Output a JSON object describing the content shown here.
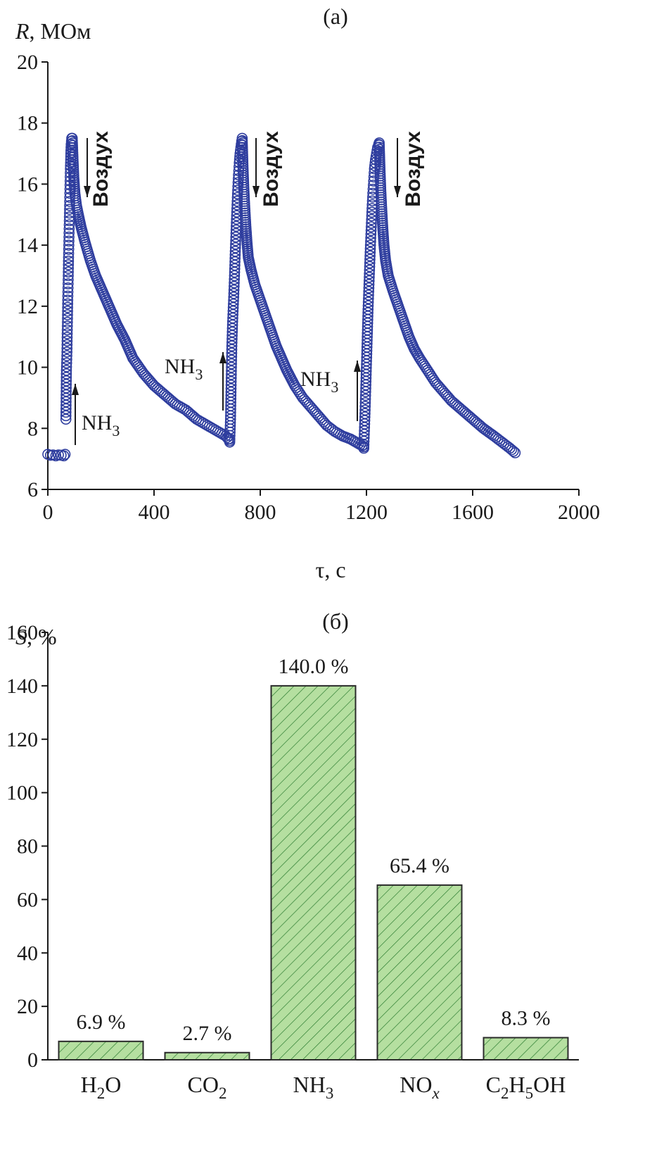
{
  "chart_data": [
    {
      "type": "scatter",
      "panel_label": "(a)",
      "ylabel_symbol": "R",
      "ylabel_unit": ", МОм",
      "xlabel": "τ, с",
      "xlim": [
        0,
        2000
      ],
      "ylim": [
        6,
        20
      ],
      "xticks": [
        0,
        400,
        800,
        1200,
        1600,
        2000
      ],
      "yticks": [
        6,
        8,
        10,
        12,
        14,
        16,
        18,
        20
      ],
      "marker_color": "#2e3d9e",
      "baseline": [
        [
          0,
          7.15
        ],
        [
          10,
          7.12
        ],
        [
          20,
          7.13
        ],
        [
          30,
          7.1
        ],
        [
          40,
          7.13
        ],
        [
          50,
          7.12
        ],
        [
          60,
          7.1
        ],
        [
          65,
          7.15
        ]
      ],
      "cycles": [
        {
          "rise": [
            [
              68,
              8.3
            ],
            [
              70,
              9.9
            ],
            [
              72,
              10.5
            ],
            [
              73,
              11.1
            ],
            [
              74,
              11.6
            ],
            [
              75,
              12.2
            ],
            [
              76,
              12.6
            ],
            [
              77,
              13.0
            ],
            [
              78,
              13.6
            ],
            [
              79,
              14.0
            ],
            [
              80,
              14.4
            ],
            [
              81,
              14.8
            ],
            [
              82,
              15.3
            ],
            [
              83,
              15.7
            ],
            [
              84,
              16.1
            ],
            [
              85,
              16.5
            ],
            [
              86,
              16.8
            ],
            [
              87,
              17.1
            ],
            [
              88,
              17.3
            ],
            [
              90,
              17.5
            ]
          ],
          "peak": [
            92,
            17.5
          ],
          "decay": [
            [
              92,
              17.5
            ],
            [
              95,
              16.8
            ],
            [
              98,
              16.2
            ],
            [
              102,
              15.7
            ],
            [
              108,
              15.3
            ],
            [
              115,
              15.0
            ],
            [
              125,
              14.6
            ],
            [
              140,
              14.1
            ],
            [
              160,
              13.5
            ],
            [
              180,
              13.0
            ],
            [
              200,
              12.6
            ],
            [
              230,
              12.0
            ],
            [
              260,
              11.4
            ],
            [
              290,
              10.9
            ],
            [
              320,
              10.3
            ],
            [
              360,
              9.8
            ],
            [
              400,
              9.4
            ],
            [
              440,
              9.1
            ],
            [
              480,
              8.8
            ],
            [
              520,
              8.6
            ],
            [
              560,
              8.3
            ],
            [
              600,
              8.1
            ],
            [
              640,
              7.9
            ],
            [
              670,
              7.75
            ],
            [
              685,
              7.6
            ]
          ],
          "gas_on_label": "NH",
          "gas_on_sub": "3",
          "gas_off_label": "Воздух"
        },
        {
          "rise": [
            [
              685,
              7.55
            ],
            [
              688,
              8.3
            ],
            [
              690,
              9.3
            ],
            [
              693,
              10.7
            ],
            [
              696,
              11.5
            ],
            [
              700,
              12.3
            ],
            [
              703,
              13.0
            ],
            [
              706,
              13.8
            ],
            [
              709,
              14.5
            ],
            [
              712,
              15.2
            ],
            [
              715,
              15.8
            ],
            [
              718,
              16.3
            ],
            [
              721,
              16.7
            ],
            [
              724,
              17.0
            ],
            [
              727,
              17.2
            ],
            [
              730,
              17.4
            ]
          ],
          "peak": [
            732,
            17.5
          ],
          "decay": [
            [
              732,
              17.5
            ],
            [
              735,
              16.6
            ],
            [
              738,
              15.9
            ],
            [
              742,
              15.2
            ],
            [
              746,
              14.6
            ],
            [
              750,
              14.1
            ],
            [
              755,
              13.6
            ],
            [
              765,
              13.2
            ],
            [
              780,
              12.7
            ],
            [
              800,
              12.2
            ],
            [
              820,
              11.7
            ],
            [
              840,
              11.2
            ],
            [
              860,
              10.7
            ],
            [
              880,
              10.3
            ],
            [
              900,
              9.9
            ],
            [
              930,
              9.4
            ],
            [
              960,
              9.0
            ],
            [
              990,
              8.7
            ],
            [
              1020,
              8.4
            ],
            [
              1050,
              8.1
            ],
            [
              1080,
              7.9
            ],
            [
              1110,
              7.75
            ],
            [
              1140,
              7.65
            ],
            [
              1170,
              7.5
            ],
            [
              1190,
              7.4
            ]
          ],
          "gas_on_label": "NH",
          "gas_on_sub": "3",
          "gas_off_label": "Воздух"
        },
        {
          "rise": [
            [
              1190,
              7.35
            ],
            [
              1195,
              8.6
            ],
            [
              1197,
              9.2
            ],
            [
              1200,
              10.1
            ],
            [
              1203,
              11.0
            ],
            [
              1206,
              11.9
            ],
            [
              1209,
              12.6
            ],
            [
              1212,
              13.3
            ],
            [
              1215,
              14.0
            ],
            [
              1218,
              14.6
            ],
            [
              1221,
              15.2
            ],
            [
              1224,
              15.7
            ],
            [
              1227,
              16.1
            ],
            [
              1230,
              16.5
            ],
            [
              1234,
              16.8
            ],
            [
              1238,
              17.0
            ],
            [
              1242,
              17.2
            ],
            [
              1246,
              17.3
            ]
          ],
          "peak": [
            1248,
            17.35
          ],
          "decay": [
            [
              1248,
              17.35
            ],
            [
              1251,
              16.5
            ],
            [
              1254,
              15.8
            ],
            [
              1258,
              15.1
            ],
            [
              1262,
              14.5
            ],
            [
              1266,
              14.0
            ],
            [
              1272,
              13.5
            ],
            [
              1282,
              13.0
            ],
            [
              1300,
              12.5
            ],
            [
              1320,
              12.0
            ],
            [
              1340,
              11.5
            ],
            [
              1360,
              11.0
            ],
            [
              1380,
              10.6
            ],
            [
              1400,
              10.3
            ],
            [
              1430,
              9.9
            ],
            [
              1460,
              9.5
            ],
            [
              1490,
              9.2
            ],
            [
              1520,
              8.9
            ],
            [
              1560,
              8.6
            ],
            [
              1600,
              8.3
            ],
            [
              1640,
              8.0
            ],
            [
              1680,
              7.75
            ],
            [
              1710,
              7.55
            ],
            [
              1740,
              7.35
            ],
            [
              1760,
              7.2
            ]
          ],
          "gas_on_label": "NH",
          "gas_on_sub": "3",
          "gas_off_label": "Воздух"
        }
      ]
    },
    {
      "type": "bar",
      "panel_label": "(б)",
      "ylabel_symbol": "S",
      "ylabel_unit": ", %",
      "ylim": [
        0,
        160
      ],
      "yticks": [
        0,
        20,
        40,
        60,
        80,
        100,
        120,
        140,
        160
      ],
      "bar_fill": "#b5dfa0",
      "hatch_color": "#2e7d32",
      "categories": [
        {
          "parts": [
            [
              "H",
              ""
            ],
            [
              "2",
              "sub"
            ],
            [
              "O",
              ""
            ]
          ]
        },
        {
          "parts": [
            [
              "CO",
              ""
            ],
            [
              "2",
              "sub"
            ]
          ]
        },
        {
          "parts": [
            [
              "NH",
              ""
            ],
            [
              "3",
              "sub"
            ]
          ]
        },
        {
          "parts": [
            [
              "NO",
              ""
            ],
            [
              "x",
              "subit"
            ]
          ]
        },
        {
          "parts": [
            [
              "C",
              ""
            ],
            [
              "2",
              "sub"
            ],
            [
              "H",
              ""
            ],
            [
              "5",
              "sub"
            ],
            [
              "OH",
              ""
            ]
          ]
        }
      ],
      "values": [
        6.9,
        2.7,
        140.0,
        65.4,
        8.3
      ],
      "value_labels": [
        "6.9 %",
        "2.7 %",
        "140.0 %",
        "65.4 %",
        "8.3 %"
      ]
    }
  ]
}
